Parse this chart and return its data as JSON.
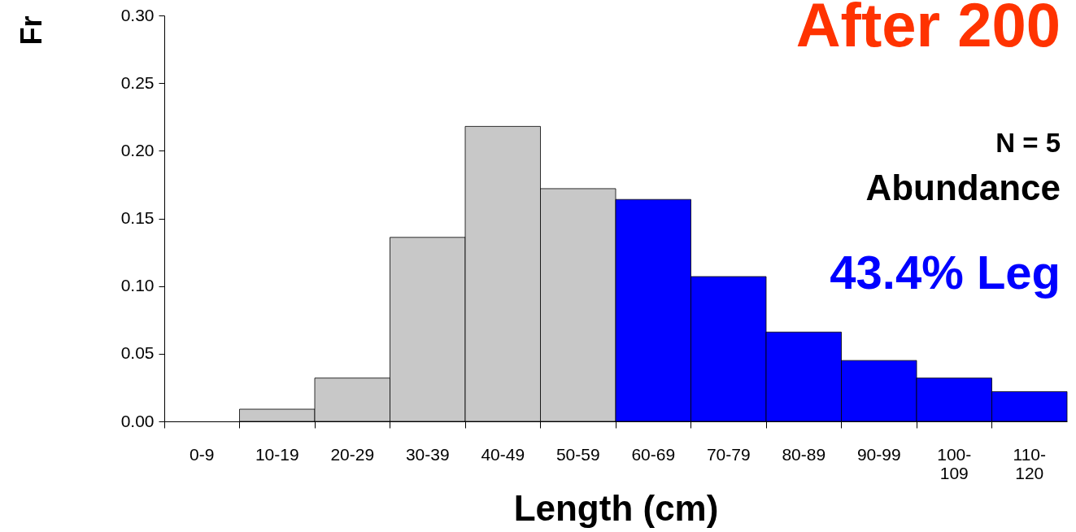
{
  "chart_data": {
    "type": "bar",
    "title": "After 200",
    "ylabel": "Fr",
    "xlabel": "Length (cm)",
    "annotations": [
      "N = 5",
      "Abundance",
      "43.4% Leg"
    ],
    "categories": [
      "0-9",
      "10-19",
      "20-29",
      "30-39",
      "40-49",
      "50-59",
      "60-69",
      "70-79",
      "80-89",
      "90-99",
      "100-109",
      "110-120"
    ],
    "values": [
      0,
      0.009,
      0.032,
      0.136,
      0.218,
      0.172,
      0.164,
      0.107,
      0.066,
      0.045,
      0.032,
      0.022
    ],
    "colors": [
      "#c8c8c8",
      "#c8c8c8",
      "#c8c8c8",
      "#c8c8c8",
      "#c8c8c8",
      "#c8c8c8",
      "#0000ff",
      "#0000ff",
      "#0000ff",
      "#0000ff",
      "#0000ff",
      "#0000ff"
    ],
    "ylim": [
      0,
      0.3
    ],
    "yticks": [
      {
        "value": 0,
        "label": "0.00"
      },
      {
        "value": 0.05,
        "label": "0.05"
      },
      {
        "value": 0.1,
        "label": "0.10"
      },
      {
        "value": 0.15,
        "label": "0.15"
      },
      {
        "value": 0.2,
        "label": "0.20"
      },
      {
        "value": 0.25,
        "label": "0.25"
      },
      {
        "value": 0.3,
        "label": "0.30"
      }
    ],
    "grid": false
  }
}
